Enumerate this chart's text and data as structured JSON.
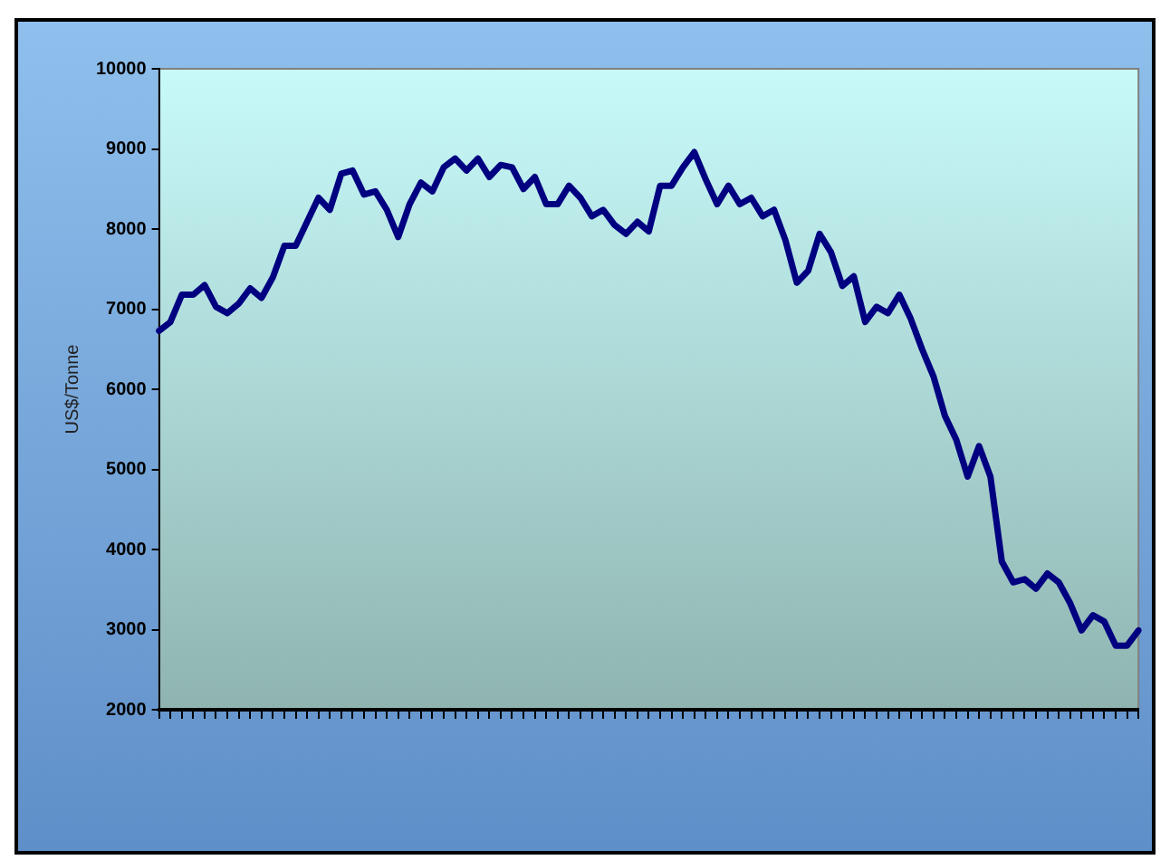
{
  "chart_data": {
    "type": "line",
    "ylabel": "US$/Tonne",
    "categories": [
      null,
      null,
      null,
      null,
      null,
      null,
      null,
      null,
      null,
      null,
      null,
      null,
      null,
      null,
      null,
      null,
      null,
      null,
      null,
      null,
      null,
      null,
      null,
      null,
      null,
      null,
      null,
      null,
      null,
      null,
      null,
      null,
      null,
      null,
      null,
      null,
      null,
      null,
      null,
      null,
      null,
      null,
      null,
      null,
      null,
      null,
      null,
      null,
      null,
      null,
      null,
      null,
      null,
      null,
      null,
      null,
      null,
      null,
      null,
      null,
      null,
      null,
      null,
      null,
      null,
      null,
      null,
      null,
      null,
      null,
      null,
      null,
      null,
      null,
      null,
      null,
      null,
      null,
      null,
      null,
      null,
      null,
      null,
      null,
      null,
      null,
      null
    ],
    "series": [
      {
        "color": "#000080",
        "values": [
          6730,
          6840,
          7180,
          7180,
          7300,
          7030,
          6950,
          7070,
          7260,
          7140,
          7400,
          7790,
          7790,
          8090,
          8390,
          8240,
          8690,
          8730,
          8430,
          8470,
          8240,
          7900,
          8310,
          8580,
          8470,
          8770,
          8880,
          8730,
          8880,
          8650,
          8800,
          8770,
          8500,
          8650,
          8310,
          8310,
          8540,
          8390,
          8160,
          8240,
          8050,
          7940,
          8090,
          7970,
          8540,
          8540,
          8770,
          8960,
          8620,
          8310,
          8540,
          8310,
          8390,
          8160,
          8240,
          7860,
          7330,
          7480,
          7940,
          7710,
          7290,
          7410,
          6840,
          7030,
          6950,
          7180,
          6880,
          6500,
          6160,
          5670,
          5370,
          4910,
          5290,
          4910,
          3850,
          3590,
          3630,
          3510,
          3700,
          3590,
          3330,
          2990,
          3180,
          3100,
          2800,
          2800,
          2990
        ]
      }
    ],
    "ylim": [
      2000,
      10000
    ],
    "yticks": [
      2000,
      3000,
      4000,
      5000,
      6000,
      7000,
      8000,
      9000,
      10000
    ],
    "grid": false,
    "legend": false,
    "marker": "none",
    "line_style": "solid"
  }
}
